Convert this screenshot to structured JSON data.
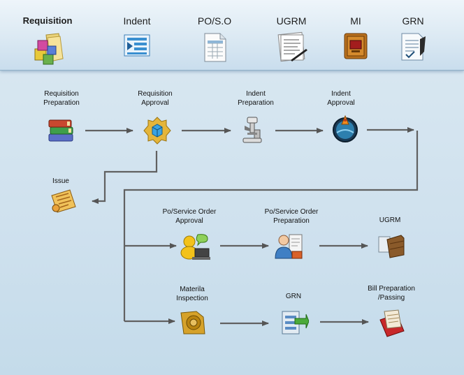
{
  "top_nav": {
    "items": [
      {
        "label": "Requisition",
        "icon": "cubes-folder-icon"
      },
      {
        "label": "Indent",
        "icon": "list-play-icon"
      },
      {
        "label": "PO/S.O",
        "icon": "spreadsheet-icon"
      },
      {
        "label": "UGRM",
        "icon": "notes-pen-icon"
      },
      {
        "label": "MI",
        "icon": "box-crate-icon"
      },
      {
        "label": "GRN",
        "icon": "checklist-pen-icon"
      }
    ]
  },
  "flow": {
    "requisition_preparation": {
      "line1": "Requisition",
      "line2": "Preparation",
      "icon": "books-icon"
    },
    "requisition_approval": {
      "line1": "Requisition",
      "line2": "Approval",
      "icon": "puzzle-cube-icon"
    },
    "indent_preparation": {
      "line1": "Indent",
      "line2": "Preparation",
      "icon": "microscope-icon"
    },
    "indent_approval": {
      "line1": "Indent",
      "line2": "Approval",
      "icon": "globe-flask-icon"
    },
    "issue": {
      "line1": "Issue",
      "icon": "scroll-icon"
    },
    "po_approval": {
      "line1": "Po/Service Order",
      "line2": "Approval",
      "icon": "person-laptop-icon"
    },
    "po_preparation": {
      "line1": "Po/Service Order",
      "line2": "Preparation",
      "icon": "doctor-document-icon"
    },
    "ugrm": {
      "line1": "UGRM",
      "icon": "crate-icon"
    },
    "material_inspection": {
      "line1": "Materila",
      "line2": "Inspection",
      "icon": "tape-roll-icon"
    },
    "grn": {
      "line1": "GRN",
      "icon": "server-arrow-icon"
    },
    "bill_preparation": {
      "line1": "Bill Preparation",
      "line2": "/Passing",
      "icon": "bill-stack-icon"
    }
  }
}
